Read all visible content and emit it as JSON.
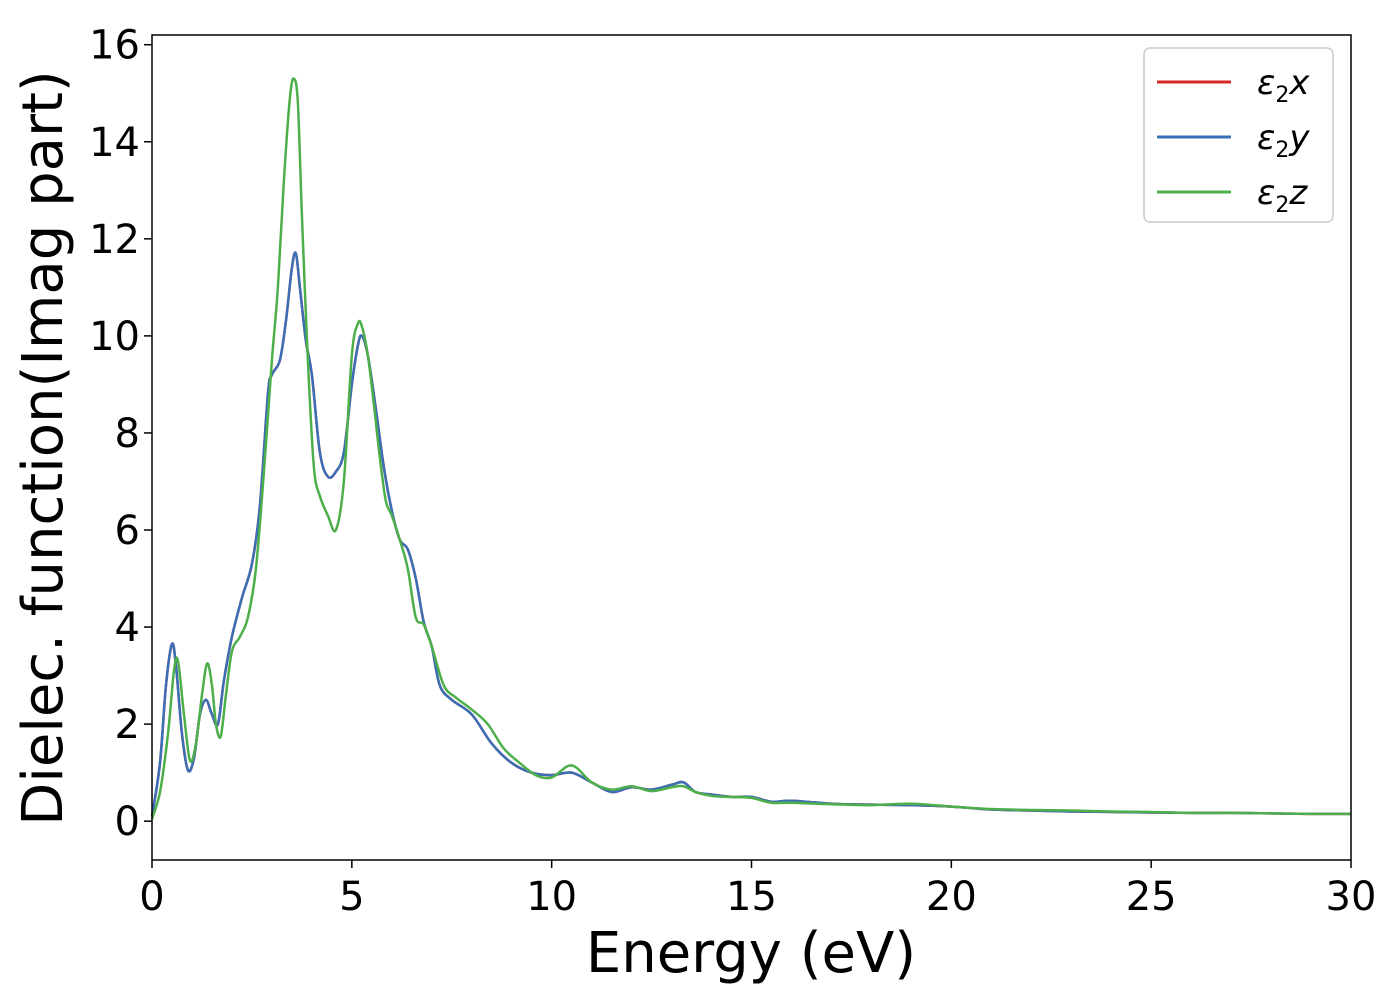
{
  "chart_data": {
    "type": "line",
    "title": "",
    "xlabel": "Energy (eV)",
    "ylabel": "Dielec. function(Imag part)",
    "xlim": [
      0,
      30
    ],
    "ylim": [
      -0.8,
      16.2
    ],
    "xticks": [
      0,
      5,
      10,
      15,
      20,
      25,
      30
    ],
    "yticks": [
      0,
      2,
      4,
      6,
      8,
      10,
      12,
      14,
      16
    ],
    "grid": false,
    "legend_position": "top-right",
    "series": [
      {
        "name": "ε2x",
        "legend": {
          "base": "ε",
          "sub": "2",
          "tail": "x"
        },
        "color": "#d62728",
        "x": [
          0,
          0.2,
          0.35,
          0.5,
          0.6,
          0.75,
          0.9,
          1.05,
          1.2,
          1.35,
          1.5,
          1.65,
          1.8,
          2.0,
          2.25,
          2.5,
          2.7,
          2.9,
          3.0,
          3.2,
          3.35,
          3.5,
          3.6,
          3.7,
          3.85,
          4.0,
          4.2,
          4.4,
          4.6,
          4.8,
          5.0,
          5.15,
          5.25,
          5.4,
          5.6,
          5.8,
          6.0,
          6.2,
          6.4,
          6.6,
          6.8,
          7.0,
          7.2,
          7.5,
          8.0,
          8.5,
          9.0,
          9.5,
          10.0,
          10.5,
          11.0,
          11.5,
          12.0,
          12.5,
          13.0,
          13.3,
          13.6,
          14.0,
          14.5,
          15.0,
          15.5,
          16.0,
          17.0,
          18.0,
          19.0,
          20.0,
          21.0,
          22.0,
          23.0,
          24.0,
          25.0,
          26.0,
          27.0,
          28.0,
          29.0,
          30.0
        ],
        "values": [
          0.1,
          1.2,
          2.8,
          3.65,
          3.2,
          1.8,
          1.05,
          1.3,
          2.2,
          2.5,
          2.2,
          2.0,
          2.9,
          3.8,
          4.6,
          5.3,
          6.5,
          8.8,
          9.2,
          9.5,
          10.3,
          11.4,
          11.7,
          11.0,
          9.9,
          9.2,
          7.6,
          7.1,
          7.2,
          7.6,
          9.0,
          9.8,
          10.0,
          9.6,
          8.5,
          7.3,
          6.4,
          5.8,
          5.6,
          5.0,
          4.1,
          3.6,
          2.8,
          2.5,
          2.2,
          1.6,
          1.2,
          1.0,
          0.95,
          1.0,
          0.8,
          0.6,
          0.7,
          0.65,
          0.75,
          0.8,
          0.6,
          0.55,
          0.5,
          0.5,
          0.4,
          0.42,
          0.36,
          0.34,
          0.33,
          0.3,
          0.24,
          0.22,
          0.2,
          0.19,
          0.18,
          0.17,
          0.17,
          0.16,
          0.15,
          0.15
        ]
      },
      {
        "name": "ε2y",
        "legend": {
          "base": "ε",
          "sub": "2",
          "tail": "y"
        },
        "color": "#3a6eb5",
        "x": [
          0,
          0.2,
          0.35,
          0.5,
          0.6,
          0.75,
          0.9,
          1.05,
          1.2,
          1.35,
          1.5,
          1.65,
          1.8,
          2.0,
          2.25,
          2.5,
          2.7,
          2.9,
          3.0,
          3.2,
          3.35,
          3.5,
          3.6,
          3.7,
          3.85,
          4.0,
          4.2,
          4.4,
          4.6,
          4.8,
          5.0,
          5.15,
          5.25,
          5.4,
          5.6,
          5.8,
          6.0,
          6.2,
          6.4,
          6.6,
          6.8,
          7.0,
          7.2,
          7.5,
          8.0,
          8.5,
          9.0,
          9.5,
          10.0,
          10.5,
          11.0,
          11.5,
          12.0,
          12.5,
          13.0,
          13.3,
          13.6,
          14.0,
          14.5,
          15.0,
          15.5,
          16.0,
          17.0,
          18.0,
          19.0,
          20.0,
          21.0,
          22.0,
          23.0,
          24.0,
          25.0,
          26.0,
          27.0,
          28.0,
          29.0,
          30.0
        ],
        "values": [
          0.1,
          1.2,
          2.8,
          3.65,
          3.2,
          1.8,
          1.05,
          1.3,
          2.2,
          2.5,
          2.2,
          2.0,
          2.9,
          3.8,
          4.6,
          5.3,
          6.5,
          8.8,
          9.2,
          9.5,
          10.3,
          11.4,
          11.7,
          11.0,
          9.9,
          9.2,
          7.6,
          7.1,
          7.2,
          7.6,
          9.0,
          9.8,
          10.0,
          9.6,
          8.5,
          7.3,
          6.4,
          5.8,
          5.6,
          5.0,
          4.1,
          3.6,
          2.8,
          2.5,
          2.2,
          1.6,
          1.2,
          1.0,
          0.95,
          1.0,
          0.8,
          0.6,
          0.7,
          0.65,
          0.75,
          0.8,
          0.6,
          0.55,
          0.5,
          0.5,
          0.4,
          0.42,
          0.36,
          0.34,
          0.33,
          0.3,
          0.24,
          0.22,
          0.2,
          0.19,
          0.18,
          0.17,
          0.17,
          0.16,
          0.15,
          0.15
        ]
      },
      {
        "name": "ε2z",
        "legend": {
          "base": "ε",
          "sub": "2",
          "tail": "z"
        },
        "color": "#4daf4a",
        "x": [
          0,
          0.2,
          0.4,
          0.55,
          0.65,
          0.8,
          0.95,
          1.1,
          1.25,
          1.38,
          1.5,
          1.6,
          1.72,
          1.85,
          2.0,
          2.2,
          2.4,
          2.6,
          2.8,
          3.0,
          3.15,
          3.3,
          3.45,
          3.55,
          3.65,
          3.75,
          3.9,
          4.05,
          4.2,
          4.4,
          4.6,
          4.8,
          5.0,
          5.15,
          5.25,
          5.4,
          5.55,
          5.7,
          5.85,
          6.0,
          6.2,
          6.4,
          6.6,
          6.8,
          7.0,
          7.3,
          7.6,
          8.0,
          8.4,
          8.8,
          9.2,
          9.6,
          10.0,
          10.5,
          11.0,
          11.5,
          12.0,
          12.5,
          13.0,
          13.3,
          13.6,
          14.0,
          14.5,
          15.0,
          15.5,
          16.0,
          17.0,
          18.0,
          19.0,
          20.0,
          21.0,
          22.0,
          23.0,
          24.0,
          25.0,
          26.0,
          27.0,
          28.0,
          29.0,
          30.0
        ],
        "values": [
          0.05,
          0.6,
          1.8,
          3.1,
          3.3,
          2.2,
          1.25,
          1.6,
          2.6,
          3.25,
          2.8,
          2.0,
          1.75,
          2.6,
          3.5,
          3.8,
          4.2,
          5.2,
          7.2,
          9.5,
          11.0,
          13.2,
          14.9,
          15.3,
          14.8,
          12.5,
          9.5,
          7.3,
          6.7,
          6.3,
          6.0,
          7.0,
          9.6,
          10.25,
          10.2,
          9.6,
          8.6,
          7.5,
          6.6,
          6.3,
          5.8,
          5.2,
          4.2,
          4.05,
          3.6,
          2.8,
          2.55,
          2.3,
          2.0,
          1.5,
          1.2,
          0.95,
          0.9,
          1.15,
          0.8,
          0.65,
          0.72,
          0.62,
          0.7,
          0.72,
          0.6,
          0.52,
          0.5,
          0.48,
          0.38,
          0.38,
          0.35,
          0.33,
          0.36,
          0.3,
          0.25,
          0.23,
          0.22,
          0.2,
          0.19,
          0.17,
          0.17,
          0.16,
          0.15,
          0.15
        ]
      }
    ]
  }
}
